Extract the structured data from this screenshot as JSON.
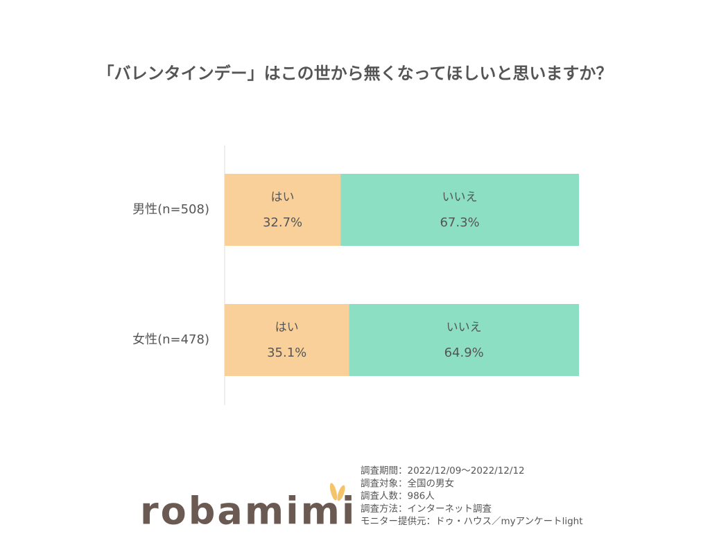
{
  "chart_data": {
    "type": "bar",
    "orientation": "horizontal",
    "stacked": true,
    "title": "「バレンタインデー」はこの世から無くなってほしいと思いますか？",
    "categories": [
      "男性(n=508)",
      "女性(n=478)"
    ],
    "series": [
      {
        "name": "はい",
        "color": "#f9d09a",
        "values": [
          32.7,
          35.1
        ],
        "value_labels": [
          "32.7%",
          "35.1%"
        ]
      },
      {
        "name": "いいえ",
        "color": "#8ddfc4",
        "values": [
          67.3,
          64.9
        ],
        "value_labels": [
          "67.3%",
          "64.9%"
        ]
      }
    ],
    "xlim": [
      0,
      100
    ]
  },
  "notes": [
    "調査期間：2022/12/09～2022/12/12",
    "調査対象：全国の男女",
    "調査人数：986人",
    "調査方法：インターネット調査",
    "モニター提供元：ドゥ・ハウス／myアンケートlight"
  ],
  "logo": "robamimi"
}
